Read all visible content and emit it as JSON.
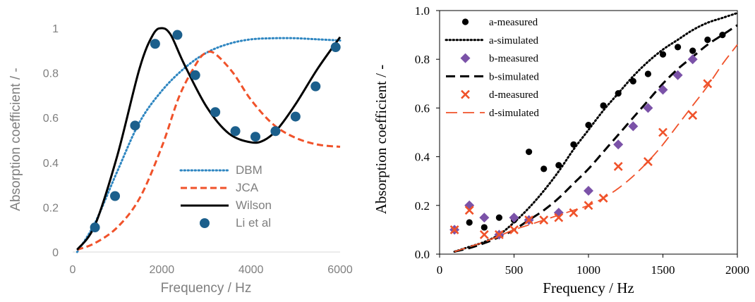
{
  "chart_data": [
    {
      "type": "line",
      "xlabel": "Frequency / Hz",
      "ylabel": "Absorption coefficient / -",
      "xlim": [
        0,
        6000
      ],
      "ylim": [
        0,
        1
      ],
      "xticks": [
        "0",
        "2000",
        "4000",
        "6000"
      ],
      "yticks": [
        "0",
        "0.2",
        "0.4",
        "0.6",
        "0.8",
        "1"
      ],
      "grid": false,
      "legend_position": "bottom-right",
      "series": [
        {
          "name": "DBM",
          "style": "dotted",
          "color": "#2e86c1",
          "x": [
            100,
            500,
            1000,
            1500,
            2000,
            2500,
            3000,
            3500,
            4000,
            4500,
            5000,
            5500,
            6000
          ],
          "y": [
            0.0,
            0.13,
            0.36,
            0.58,
            0.72,
            0.82,
            0.89,
            0.93,
            0.95,
            0.955,
            0.955,
            0.95,
            0.945
          ]
        },
        {
          "name": "JCA",
          "style": "dashed",
          "color": "#f0522a",
          "x": [
            100,
            500,
            1000,
            1500,
            2000,
            2400,
            2800,
            3000,
            3200,
            3600,
            4000,
            4500,
            5000,
            5500,
            6000
          ],
          "y": [
            0.01,
            0.04,
            0.11,
            0.24,
            0.47,
            0.7,
            0.85,
            0.89,
            0.885,
            0.8,
            0.68,
            0.57,
            0.51,
            0.48,
            0.47
          ]
        },
        {
          "name": "Wilson",
          "style": "solid",
          "color": "#000000",
          "x": [
            100,
            500,
            1000,
            1500,
            1800,
            2000,
            2200,
            2500,
            3000,
            3500,
            4000,
            4300,
            4600,
            5000,
            5500,
            6000
          ],
          "y": [
            0.01,
            0.12,
            0.43,
            0.82,
            0.97,
            1.0,
            0.97,
            0.84,
            0.65,
            0.53,
            0.49,
            0.5,
            0.55,
            0.66,
            0.82,
            0.96
          ]
        },
        {
          "name": "Li et al",
          "style": "marker-circle",
          "color": "#1b5f8c",
          "x": [
            500,
            950,
            1400,
            1850,
            2350,
            2750,
            3200,
            3650,
            4100,
            4550,
            5000,
            5450,
            5900
          ],
          "y": [
            0.11,
            0.25,
            0.565,
            0.93,
            0.97,
            0.79,
            0.625,
            0.54,
            0.515,
            0.54,
            0.605,
            0.74,
            0.915
          ]
        }
      ]
    },
    {
      "type": "scatter",
      "xlabel": "Frequency / Hz",
      "ylabel": "Absorption coefficient / -",
      "xlim": [
        0,
        2000
      ],
      "ylim": [
        0,
        1
      ],
      "xticks": [
        "0",
        "500",
        "1000",
        "1500",
        "2000"
      ],
      "yticks": [
        "0.0",
        "0.2",
        "0.4",
        "0.6",
        "0.8",
        "1.0"
      ],
      "grid": false,
      "legend_position": "top-left",
      "series": [
        {
          "name": "a-measured",
          "style": "marker-dot",
          "color": "#000000",
          "x": [
            100,
            200,
            300,
            400,
            500,
            600,
            700,
            800,
            900,
            1000,
            1100,
            1200,
            1300,
            1400,
            1500,
            1600,
            1700,
            1800,
            1900
          ],
          "y": [
            0.1,
            0.13,
            0.11,
            0.15,
            0.14,
            0.42,
            0.35,
            0.365,
            0.45,
            0.53,
            0.61,
            0.66,
            0.71,
            0.74,
            0.82,
            0.85,
            0.835,
            0.88,
            0.9
          ]
        },
        {
          "name": "a-simulated",
          "style": "dotted",
          "color": "#000000",
          "x": [
            100,
            200,
            300,
            400,
            500,
            600,
            700,
            800,
            900,
            1000,
            1100,
            1200,
            1300,
            1400,
            1500,
            1600,
            1700,
            1800,
            1900,
            2000
          ],
          "y": [
            0.01,
            0.03,
            0.05,
            0.08,
            0.13,
            0.19,
            0.26,
            0.34,
            0.43,
            0.51,
            0.59,
            0.66,
            0.73,
            0.79,
            0.84,
            0.88,
            0.92,
            0.95,
            0.97,
            0.99
          ]
        },
        {
          "name": "b-measured",
          "style": "marker-diamond",
          "color": "#7b52a8",
          "x": [
            100,
            200,
            300,
            400,
            500,
            600,
            800,
            1000,
            1200,
            1300,
            1400,
            1500,
            1600,
            1700
          ],
          "y": [
            0.1,
            0.2,
            0.15,
            0.08,
            0.15,
            0.14,
            0.17,
            0.26,
            0.45,
            0.525,
            0.6,
            0.675,
            0.735,
            0.8
          ]
        },
        {
          "name": "b-simulated",
          "style": "dashed",
          "color": "#000000",
          "x": [
            100,
            200,
            300,
            400,
            500,
            600,
            700,
            800,
            900,
            1000,
            1100,
            1200,
            1300,
            1400,
            1500,
            1600,
            1700,
            1800,
            1900,
            2000
          ],
          "y": [
            0.01,
            0.025,
            0.045,
            0.07,
            0.1,
            0.14,
            0.18,
            0.23,
            0.29,
            0.35,
            0.42,
            0.49,
            0.56,
            0.63,
            0.7,
            0.76,
            0.81,
            0.86,
            0.9,
            0.94
          ]
        },
        {
          "name": "d-measured",
          "style": "marker-x",
          "color": "#f0522a",
          "x": [
            100,
            200,
            300,
            400,
            500,
            600,
            700,
            800,
            900,
            1000,
            1100,
            1200,
            1400,
            1500,
            1700,
            1800
          ],
          "y": [
            0.1,
            0.18,
            0.08,
            0.08,
            0.1,
            0.14,
            0.14,
            0.15,
            0.17,
            0.2,
            0.23,
            0.36,
            0.38,
            0.5,
            0.57,
            0.7
          ]
        },
        {
          "name": "d-simulated",
          "style": "longdash",
          "color": "#f0522a",
          "x": [
            100,
            200,
            300,
            400,
            500,
            600,
            700,
            800,
            900,
            1000,
            1100,
            1200,
            1300,
            1400,
            1500,
            1600,
            1700,
            1800,
            1900,
            2000
          ],
          "y": [
            0.01,
            0.03,
            0.05,
            0.075,
            0.1,
            0.12,
            0.14,
            0.16,
            0.18,
            0.2,
            0.23,
            0.27,
            0.32,
            0.38,
            0.45,
            0.53,
            0.61,
            0.69,
            0.78,
            0.86
          ]
        }
      ]
    }
  ]
}
